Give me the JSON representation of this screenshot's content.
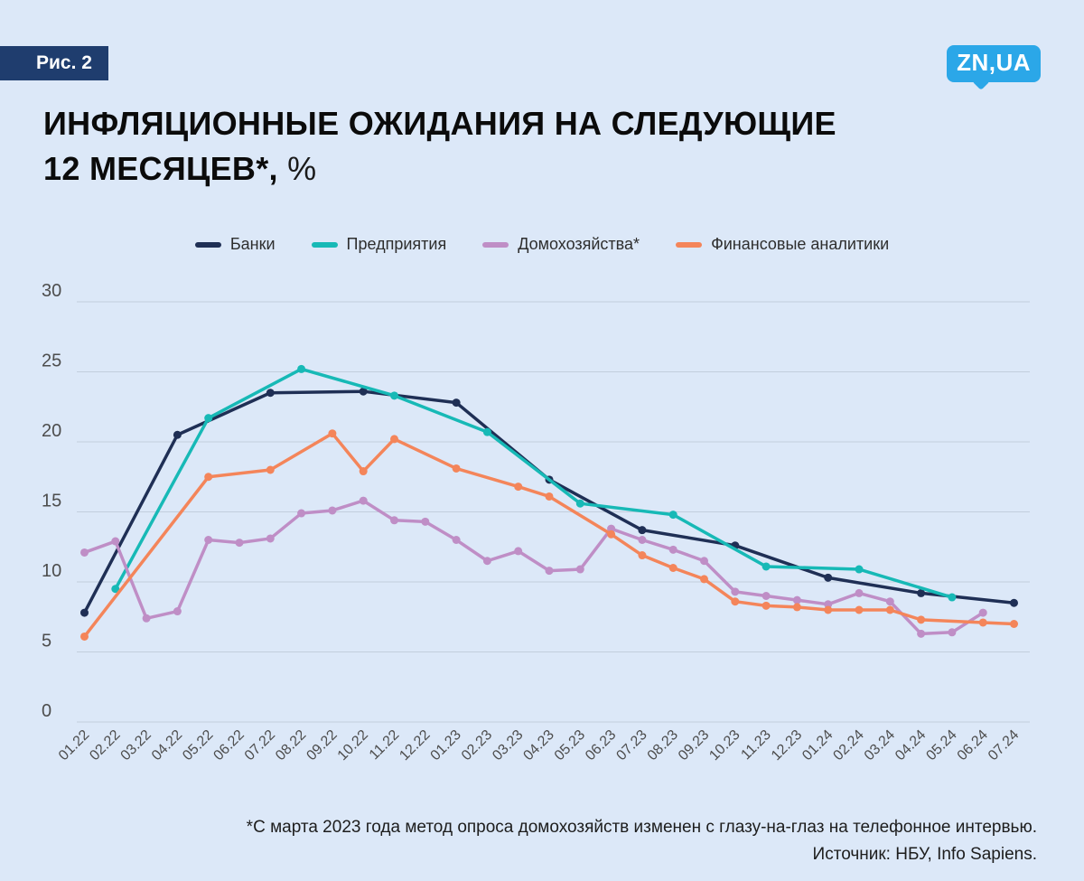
{
  "header": {
    "fig_label": "Рис. 2",
    "logo_text": "ZN,UA",
    "title_line1": "ИНФЛЯЦИОННЫЕ ОЖИДАНИЯ НА СЛЕДУЮЩИЕ",
    "title_line2": "12 МЕСЯЦЕВ*,",
    "title_unit": " %"
  },
  "colors": {
    "background": "#dce8f8",
    "badge": "#1f3d6e",
    "logo": "#2ba7e8",
    "gridline": "#c2cedd",
    "axis_label": "#4d4d4d"
  },
  "chart_data": {
    "type": "line",
    "title": "Инфляционные ожидания на следующие 12 месяцев, %",
    "ylim": [
      0,
      30
    ],
    "yticks": [
      0,
      5,
      10,
      15,
      20,
      25,
      30
    ],
    "grid": "horizontal",
    "legend_position": "top-center",
    "x_tick_rotation": -45,
    "x_labels": [
      "01.22",
      "02.22",
      "03.22",
      "04.22",
      "05.22",
      "06.22",
      "07.22",
      "08.22",
      "09.22",
      "10.22",
      "11.22",
      "12.22",
      "01.23",
      "02.23",
      "03.23",
      "04.23",
      "05.23",
      "06.23",
      "07.23",
      "08.23",
      "09.23",
      "10.23",
      "11.23",
      "12.23",
      "01.24",
      "02.24",
      "03.24",
      "04.24",
      "05.24",
      "06.24",
      "07.24"
    ],
    "series": [
      {
        "id": "banks",
        "name": "Банки",
        "color": "#1f2f55",
        "points": [
          [
            "01.22",
            7.8
          ],
          [
            "04.22",
            20.5
          ],
          [
            "07.22",
            23.5
          ],
          [
            "10.22",
            23.6
          ],
          [
            "01.23",
            22.8
          ],
          [
            "04.23",
            17.3
          ],
          [
            "07.23",
            13.7
          ],
          [
            "10.23",
            12.6
          ],
          [
            "01.24",
            10.3
          ],
          [
            "04.24",
            9.2
          ],
          [
            "07.24",
            8.5
          ]
        ]
      },
      {
        "id": "enterprises",
        "name": "Предприятия",
        "color": "#17b9b6",
        "points": [
          [
            "02.22",
            9.5
          ],
          [
            "05.22",
            21.7
          ],
          [
            "08.22",
            25.2
          ],
          [
            "11.22",
            23.3
          ],
          [
            "02.23",
            20.7
          ],
          [
            "05.23",
            15.6
          ],
          [
            "08.23",
            14.8
          ],
          [
            "11.23",
            11.1
          ],
          [
            "02.24",
            10.9
          ],
          [
            "05.24",
            8.9
          ]
        ]
      },
      {
        "id": "households",
        "name": "Домохозяйства*",
        "color": "#bf8ec6",
        "points": [
          [
            "01.22",
            12.1
          ],
          [
            "02.22",
            12.9
          ],
          [
            "03.22",
            7.4
          ],
          [
            "04.22",
            7.9
          ],
          [
            "05.22",
            13.0
          ],
          [
            "06.22",
            12.8
          ],
          [
            "07.22",
            13.1
          ],
          [
            "08.22",
            14.9
          ],
          [
            "09.22",
            15.1
          ],
          [
            "10.22",
            15.8
          ],
          [
            "11.22",
            14.4
          ],
          [
            "12.22",
            14.3
          ],
          [
            "01.23",
            13.0
          ],
          [
            "02.23",
            11.5
          ],
          [
            "03.23",
            12.2
          ],
          [
            "04.23",
            10.8
          ],
          [
            "05.23",
            10.9
          ],
          [
            "06.23",
            13.8
          ],
          [
            "07.23",
            13.0
          ],
          [
            "08.23",
            12.3
          ],
          [
            "09.23",
            11.5
          ],
          [
            "10.23",
            9.3
          ],
          [
            "11.23",
            9.0
          ],
          [
            "12.23",
            8.7
          ],
          [
            "01.24",
            8.4
          ],
          [
            "02.24",
            9.2
          ],
          [
            "03.24",
            8.6
          ],
          [
            "04.24",
            6.3
          ],
          [
            "05.24",
            6.4
          ],
          [
            "06.24",
            7.8
          ]
        ]
      },
      {
        "id": "analysts",
        "name": "Финансовые аналитики",
        "color": "#f4855a",
        "points": [
          [
            "01.22",
            6.1
          ],
          [
            "05.22",
            17.5
          ],
          [
            "07.22",
            18.0
          ],
          [
            "09.22",
            20.6
          ],
          [
            "10.22",
            17.9
          ],
          [
            "11.22",
            20.2
          ],
          [
            "01.23",
            18.1
          ],
          [
            "03.23",
            16.8
          ],
          [
            "04.23",
            16.1
          ],
          [
            "06.23",
            13.4
          ],
          [
            "07.23",
            11.9
          ],
          [
            "08.23",
            11.0
          ],
          [
            "09.23",
            10.2
          ],
          [
            "10.23",
            8.6
          ],
          [
            "11.23",
            8.3
          ],
          [
            "12.23",
            8.2
          ],
          [
            "01.24",
            8.0
          ],
          [
            "02.24",
            8.0
          ],
          [
            "03.24",
            8.0
          ],
          [
            "04.24",
            7.3
          ],
          [
            "06.24",
            7.1
          ],
          [
            "07.24",
            7.0
          ]
        ]
      }
    ]
  },
  "footer": {
    "note": "*С марта 2023 года метод опроса домохозяйств изменен с глазу-на-глаз на телефонное интервью.",
    "source": "Источник: НБУ, Info Sapiens."
  }
}
